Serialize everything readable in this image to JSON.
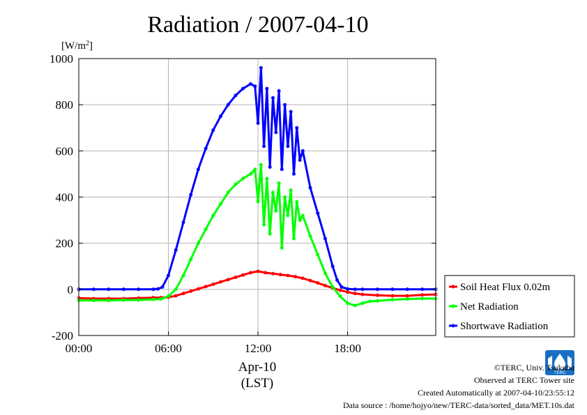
{
  "chart_data": {
    "type": "line",
    "title": "Radiation / 2007-04-10",
    "ylabel_unit": "[W/m",
    "ylabel_sup": "2",
    "ylabel_close": "]",
    "xlabel_date": "Apr-10",
    "xlabel_tz": "(LST)",
    "xlim": [
      0,
      23.9
    ],
    "ylim": [
      -200,
      1000
    ],
    "x_ticks": [
      {
        "value": 0,
        "label": "00:00"
      },
      {
        "value": 6,
        "label": "06:00"
      },
      {
        "value": 12,
        "label": "12:00"
      },
      {
        "value": 18,
        "label": "18:00"
      }
    ],
    "y_ticks": [
      {
        "value": -200,
        "label": "-200"
      },
      {
        "value": 0,
        "label": "0"
      },
      {
        "value": 200,
        "label": "200"
      },
      {
        "value": 400,
        "label": "400"
      },
      {
        "value": 600,
        "label": "600"
      },
      {
        "value": 800,
        "label": "800"
      },
      {
        "value": 1000,
        "label": "1000"
      }
    ],
    "grid": true,
    "legend_position": "outside-right-bottom",
    "series": [
      {
        "name": "Soil Heat Flux 0.02m",
        "color": "#ff0000",
        "x": [
          0,
          1,
          2,
          3,
          4,
          5,
          5.5,
          6,
          6.5,
          7,
          7.5,
          8,
          8.5,
          9,
          9.5,
          10,
          10.5,
          11,
          11.5,
          12,
          12.5,
          13,
          13.5,
          14,
          14.5,
          15,
          15.5,
          16,
          16.5,
          17,
          17.5,
          18,
          18.5,
          19,
          20,
          21,
          22,
          23,
          23.9
        ],
        "y": [
          -38,
          -40,
          -40,
          -40,
          -38,
          -36,
          -36,
          -34,
          -28,
          -18,
          -8,
          2,
          12,
          22,
          32,
          42,
          52,
          62,
          72,
          78,
          72,
          68,
          64,
          60,
          55,
          48,
          38,
          28,
          16,
          6,
          -4,
          -12,
          -18,
          -22,
          -26,
          -28,
          -28,
          -24,
          -22
        ]
      },
      {
        "name": "Net Radiation",
        "color": "#00ff00",
        "x": [
          0,
          1,
          2,
          3,
          4,
          5,
          5.5,
          6,
          6.5,
          7,
          7.5,
          8,
          8.5,
          9,
          9.5,
          10,
          10.5,
          11,
          11.5,
          11.8,
          12,
          12.2,
          12.4,
          12.6,
          12.8,
          13,
          13.2,
          13.4,
          13.6,
          13.8,
          14,
          14.2,
          14.4,
          14.6,
          14.8,
          15,
          15.5,
          16,
          16.5,
          17,
          17.5,
          18,
          18.5,
          19,
          19.5,
          20,
          21,
          22,
          23,
          23.9
        ],
        "y": [
          -48,
          -48,
          -48,
          -46,
          -46,
          -44,
          -42,
          -30,
          0,
          60,
          130,
          200,
          260,
          320,
          370,
          420,
          455,
          480,
          500,
          520,
          380,
          540,
          280,
          480,
          240,
          420,
          340,
          460,
          180,
          400,
          320,
          430,
          220,
          380,
          300,
          320,
          230,
          150,
          70,
          10,
          -30,
          -60,
          -70,
          -60,
          -52,
          -50,
          -45,
          -42,
          -40,
          -40
        ]
      },
      {
        "name": "Shortwave Radiation",
        "color": "#0000ff",
        "x": [
          0,
          1,
          2,
          3,
          4,
          5,
          5.3,
          5.6,
          6,
          6.5,
          7,
          7.5,
          8,
          8.5,
          9,
          9.5,
          10,
          10.5,
          11,
          11.5,
          11.8,
          12,
          12.2,
          12.4,
          12.6,
          12.8,
          13,
          13.2,
          13.4,
          13.6,
          13.8,
          14,
          14.2,
          14.4,
          14.6,
          14.8,
          15,
          15.5,
          16,
          16.5,
          17,
          17.3,
          17.6,
          18,
          18.5,
          19,
          20,
          21,
          22,
          23,
          23.9
        ],
        "y": [
          0,
          0,
          0,
          0,
          0,
          0,
          2,
          10,
          60,
          170,
          290,
          410,
          520,
          610,
          690,
          750,
          800,
          840,
          870,
          890,
          880,
          720,
          960,
          620,
          870,
          530,
          830,
          680,
          860,
          520,
          800,
          620,
          770,
          500,
          700,
          560,
          600,
          440,
          330,
          220,
          100,
          40,
          10,
          2,
          0,
          0,
          0,
          0,
          0,
          0,
          0
        ]
      }
    ]
  },
  "credits": {
    "copyright": "©TERC, Univ. Tsukuba",
    "observed": "Observed at TERC Tower site",
    "created": "Created Automatically at 2007-04-10/23:55:12",
    "source": "Data source : /home/hojyo/new/TERC-data/sorted_data/MET.10s.dat"
  },
  "logo": {
    "text": "TERC",
    "color": "#1a6fc4"
  }
}
